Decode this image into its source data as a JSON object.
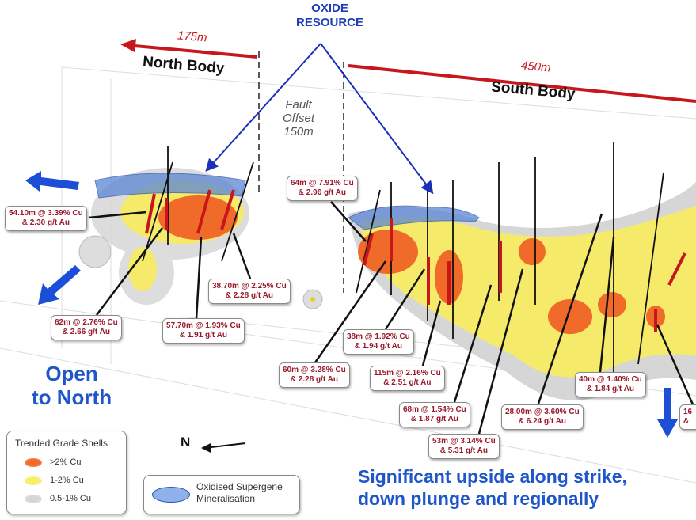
{
  "header": {
    "oxide_title": [
      "OXIDE",
      "RESOURCE"
    ],
    "north_distance": "175m",
    "north_body": "North Body",
    "south_distance": "450m",
    "south_body": "South Body",
    "fault": [
      "Fault",
      "Offset",
      "150m"
    ]
  },
  "intercepts": [
    {
      "l1": "54.10m @ 3.39% Cu",
      "l2": "& 2.30 g/t Au"
    },
    {
      "l1": "62m @ 2.76% Cu",
      "l2": "& 2.66 g/t Au"
    },
    {
      "l1": "57.70m @ 1.93% Cu",
      "l2": "& 1.91 g/t Au"
    },
    {
      "l1": "38.70m @ 2.25% Cu",
      "l2": "& 2.28 g/t Au"
    },
    {
      "l1": "64m @ 7.91% Cu",
      "l2": "& 2.96 g/t Au"
    },
    {
      "l1": "38m @ 1.92% Cu",
      "l2": "& 1.94 g/t Au"
    },
    {
      "l1": "60m @ 3.28% Cu",
      "l2": "& 2.28 g/t Au"
    },
    {
      "l1": "115m @ 2.16% Cu",
      "l2": "& 2.51 g/t Au"
    },
    {
      "l1": "68m @ 1.54% Cu",
      "l2": "& 1.87 g/t Au"
    },
    {
      "l1": "53m @ 3.14% Cu",
      "l2": "& 5.31 g/t Au"
    },
    {
      "l1": "28.00m @ 3.60% Cu",
      "l2": "& 6.24 g/t Au"
    },
    {
      "l1": "40m @ 1.40% Cu",
      "l2": "& 1.84 g/t Au"
    },
    {
      "l1": "16",
      "l2": "&"
    }
  ],
  "open_north": [
    "Open",
    "to North"
  ],
  "north_arrow": "N",
  "legend": {
    "title": "Trended Grade Shells",
    "items": [
      {
        "label": ">2% Cu",
        "color": "#f06a2a"
      },
      {
        "label": "1-2% Cu",
        "color": "#f7ee6a"
      },
      {
        "label": "0.5-1% Cu",
        "color": "#d6d6d6"
      }
    ]
  },
  "oxide_legend": [
    "Oxidised Supergene",
    "Mineralisation"
  ],
  "oxide_color": "#5b86d6",
  "upside": [
    "Significant upside along strike,",
    "down plunge and regionally"
  ],
  "colors": {
    "arrow_red": "#c8161d",
    "blue": "#1c4fd8",
    "label_text": "#9a1a2a",
    "title_blue": "#1f3fb8"
  }
}
